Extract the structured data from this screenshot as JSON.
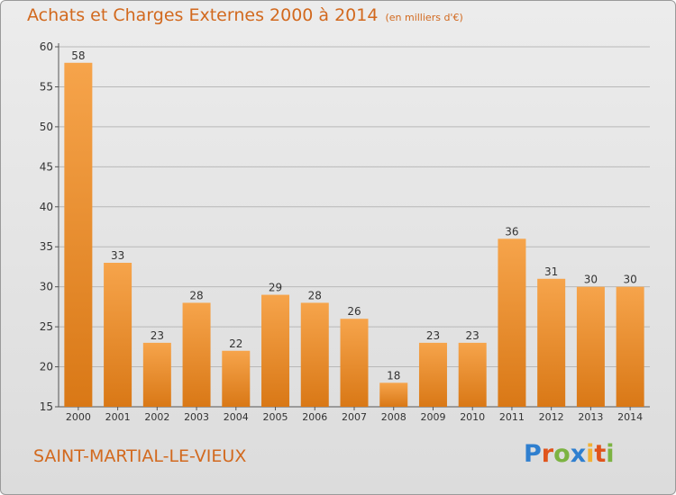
{
  "page": {
    "title": "Achats et Charges Externes 2000 à 2014",
    "title_unit": "(en milliers d'€)",
    "commune": "SAINT-MARTIAL-LE-VIEUX",
    "logo_text": "Proxiti",
    "logo_letters": [
      {
        "ch": "P",
        "color": "#2f7fcf"
      },
      {
        "ch": "r",
        "color": "#e0541b"
      },
      {
        "ch": "o",
        "color": "#7cb342"
      },
      {
        "ch": "x",
        "color": "#2f7fcf"
      },
      {
        "ch": "i",
        "color": "#f2b134"
      },
      {
        "ch": "t",
        "color": "#e0541b"
      },
      {
        "ch": "i",
        "color": "#7cb342"
      }
    ]
  },
  "colors": {
    "bar_light": "#f6a44b",
    "bar_dark": "#d97816",
    "title": "#d2691e",
    "axis": "#555555",
    "grid": "#b8b8b8"
  },
  "chart_data": {
    "type": "bar",
    "title": "Achats et Charges Externes 2000 à 2014",
    "subtitle": "(en milliers d'€)",
    "categories": [
      "2000",
      "2001",
      "2002",
      "2003",
      "2004",
      "2005",
      "2006",
      "2007",
      "2008",
      "2009",
      "2010",
      "2011",
      "2012",
      "2013",
      "2014"
    ],
    "values": [
      58,
      33,
      23,
      28,
      22,
      29,
      28,
      26,
      18,
      23,
      23,
      36,
      31,
      30,
      30
    ],
    "ylim": [
      15,
      60
    ],
    "yticks": [
      15,
      20,
      25,
      30,
      35,
      40,
      45,
      50,
      55,
      60
    ],
    "grid": true
  }
}
